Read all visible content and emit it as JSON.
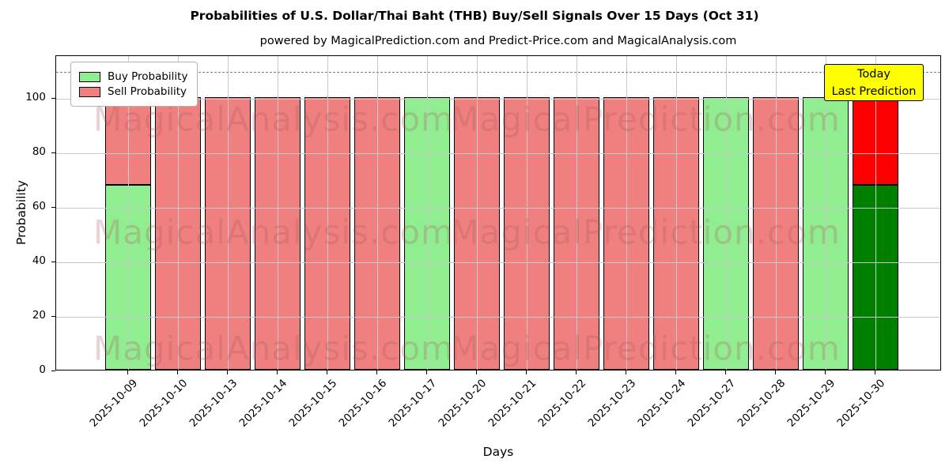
{
  "title": "Probabilities of U.S. Dollar/Thai Baht (THB) Buy/Sell Signals Over 15 Days (Oct 31)",
  "subtitle": "powered by MagicalPrediction.com and Predict-Price.com and MagicalAnalysis.com",
  "axes": {
    "xlabel": "Days",
    "ylabel": "Probability"
  },
  "legend": {
    "items": [
      {
        "label": "Buy Probability",
        "color": "#90ee90"
      },
      {
        "label": "Sell Probability",
        "color": "#f08080"
      }
    ]
  },
  "annotation": {
    "line1": "Today",
    "line2": "Last Prediction",
    "bg_color": "#ffff00"
  },
  "watermark": {
    "left_text": "MagicalAnalysis.com",
    "right_text": "MagicalPrediction.com",
    "color": "#a85f5f"
  },
  "chart_data": {
    "type": "bar",
    "stacked": true,
    "title": "Probabilities of U.S. Dollar/Thai Baht (THB) Buy/Sell Signals Over 15 Days (Oct 31)",
    "xlabel": "Days",
    "ylabel": "Probability",
    "categories": [
      "2025-10-09",
      "2025-10-10",
      "2025-10-13",
      "2025-10-14",
      "2025-10-15",
      "2025-10-16",
      "2025-10-17",
      "2025-10-20",
      "2025-10-21",
      "2025-10-22",
      "2025-10-23",
      "2025-10-24",
      "2025-10-27",
      "2025-10-28",
      "2025-10-29",
      "2025-10-30"
    ],
    "series": [
      {
        "name": "Buy Probability",
        "color": "#90ee90",
        "values": [
          68,
          0,
          0,
          0,
          0,
          0,
          100,
          0,
          0,
          0,
          0,
          0,
          100,
          0,
          100,
          68
        ]
      },
      {
        "name": "Sell Probability",
        "color": "#f08080",
        "values": [
          32,
          100,
          100,
          100,
          100,
          100,
          0,
          100,
          100,
          100,
          100,
          100,
          0,
          100,
          0,
          32
        ]
      }
    ],
    "today": {
      "index": 15,
      "buy_color": "#008000",
      "sell_color": "#ff0000"
    },
    "yticks": [
      0,
      20,
      40,
      60,
      80,
      100
    ],
    "ylim": [
      0,
      115.7
    ],
    "reference_line_y": 110,
    "grid": true,
    "legend_position": "upper left"
  }
}
